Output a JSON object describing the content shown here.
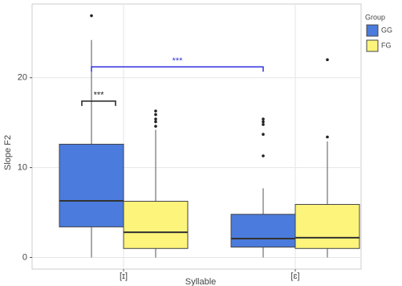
{
  "chart_data": {
    "type": "box",
    "x_label": "Syllable",
    "y_label": "Slope F2",
    "categories": [
      "[ɪ]",
      "[ɛ]"
    ],
    "legend_title": "Group",
    "legend_position": "right",
    "grid": true,
    "ylim": [
      -1.3,
      28.2
    ],
    "yticks": [
      0,
      10,
      20
    ],
    "series": [
      {
        "name": "GG",
        "color": "#4b7bdc",
        "boxes": [
          {
            "whisker_low": 0,
            "q1": 3.4,
            "median": 6.3,
            "q3": 12.6,
            "whisker_high": 24.2,
            "outliers": [
              26.9
            ]
          },
          {
            "whisker_low": 0,
            "q1": 1.15,
            "median": 2.1,
            "q3": 4.8,
            "whisker_high": 7.7,
            "outliers": [
              15.4,
              15.1,
              14.8,
              13.7,
              11.3
            ]
          }
        ]
      },
      {
        "name": "FG",
        "color": "#fdf47b",
        "boxes": [
          {
            "whisker_low": 0,
            "q1": 1.0,
            "median": 2.8,
            "q3": 6.25,
            "whisker_high": 14.2,
            "outliers": [
              16.3,
              15.9,
              15.4,
              15.1,
              14.6
            ]
          },
          {
            "whisker_low": 0,
            "q1": 1.0,
            "median": 2.2,
            "q3": 5.9,
            "whisker_high": 12.9,
            "outliers": [
              13.4,
              22.0
            ]
          }
        ]
      }
    ],
    "annotations": [
      {
        "label": "***",
        "y": 21.2,
        "color": "#3333dd"
      },
      {
        "label": "***",
        "y": 17.4,
        "color": "#222222"
      }
    ]
  }
}
